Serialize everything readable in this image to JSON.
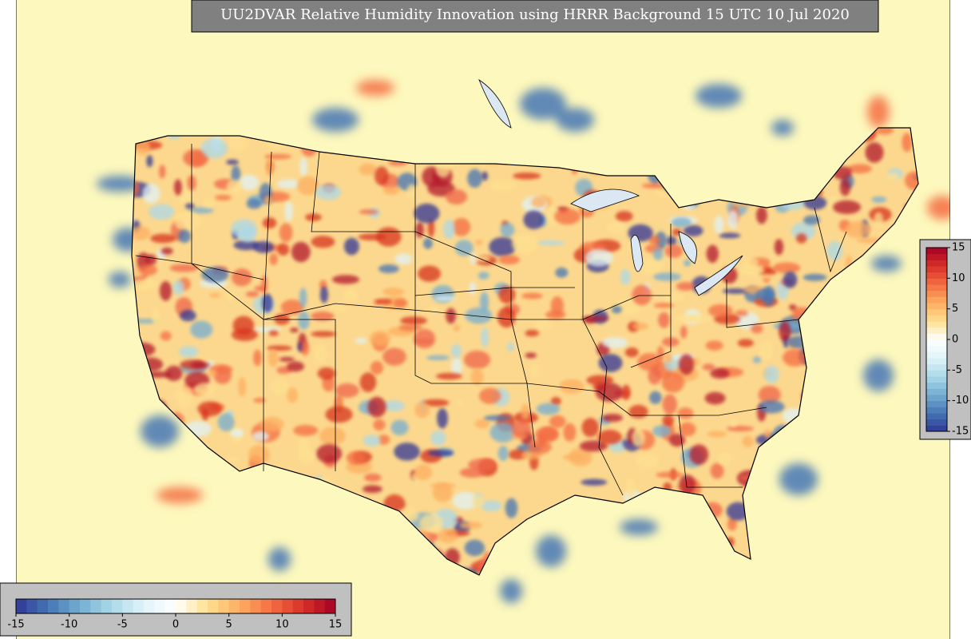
{
  "title": "UU2DVAR Relative Humidity Innovation using HRRR Background 15 UTC 10 Jul 2020",
  "colorbar_right": {
    "ticks": [
      15,
      10,
      5,
      0,
      -5,
      -10,
      -15
    ]
  },
  "colorbar_bottom": {
    "ticks": [
      -15,
      -10,
      -5,
      0,
      5,
      10,
      15
    ]
  }
}
